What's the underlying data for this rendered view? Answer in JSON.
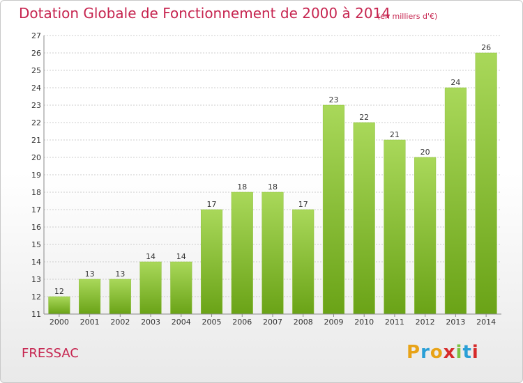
{
  "header": {
    "title": "Dotation Globale de Fonctionnement de 2000 à 2014",
    "unit": "(en milliers d'€)"
  },
  "footer": {
    "commune": "FRESSAC",
    "brand": "Proxiti",
    "brand_colors": [
      "#e8a317",
      "#2a9fd6",
      "#e8a317",
      "#d62a2a",
      "#7cc242",
      "#2a9fd6",
      "#d62a2a"
    ]
  },
  "colors": {
    "title": "#c6244f",
    "bar_top": "#a9d85a",
    "bar_bottom": "#6aa317",
    "grid": "#cccccc",
    "axis_text": "#333333"
  },
  "chart_data": {
    "type": "bar",
    "title": "Dotation Globale de Fonctionnement de 2000 à 2014",
    "subtitle": "(en milliers d'€)",
    "categories": [
      "2000",
      "2001",
      "2002",
      "2003",
      "2004",
      "2005",
      "2006",
      "2007",
      "2008",
      "2009",
      "2010",
      "2011",
      "2012",
      "2013",
      "2014"
    ],
    "values": [
      12,
      13,
      13,
      14,
      14,
      17,
      18,
      18,
      17,
      23,
      22,
      21,
      20,
      24,
      26
    ],
    "ylim": [
      11,
      27
    ],
    "yticks": [
      11,
      12,
      13,
      14,
      15,
      16,
      17,
      18,
      19,
      20,
      21,
      22,
      23,
      24,
      25,
      26,
      27
    ],
    "grid": true,
    "xlabel": "",
    "ylabel": ""
  }
}
